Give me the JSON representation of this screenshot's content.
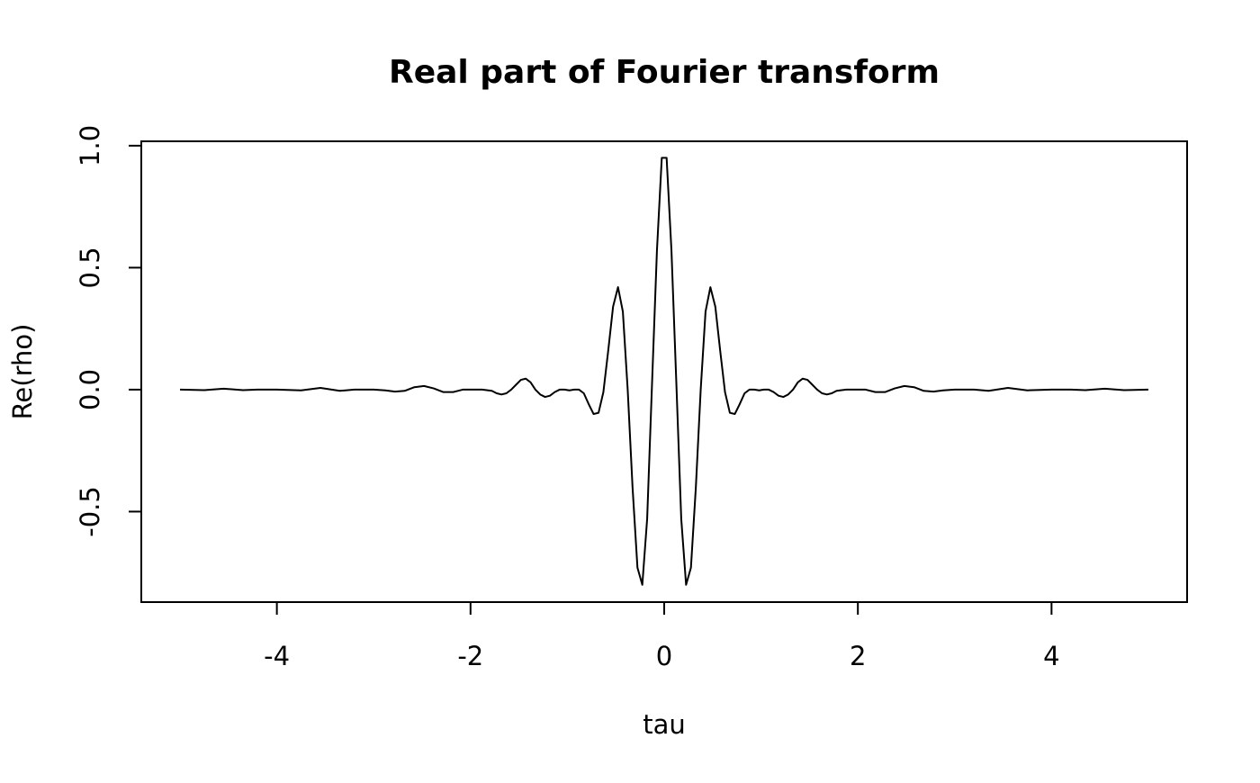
{
  "chart_data": {
    "type": "line",
    "title": "Real part of Fourier transform",
    "x_label": "tau",
    "y_label": "Re(rho)",
    "color": "#000000",
    "x": [
      -5.0,
      -4.75,
      -4.55,
      -4.35,
      -4.2,
      -4.0,
      -3.75,
      -3.55,
      -3.35,
      -3.2,
      -3.0,
      -2.88,
      -2.78,
      -2.68,
      -2.58,
      -2.48,
      -2.38,
      -2.28,
      -2.18,
      -2.08,
      -1.98,
      -1.88,
      -1.78,
      -1.73,
      -1.68,
      -1.63,
      -1.58,
      -1.53,
      -1.48,
      -1.43,
      -1.38,
      -1.33,
      -1.28,
      -1.23,
      -1.18,
      -1.13,
      -1.08,
      -1.03,
      -0.98,
      -0.93,
      -0.88,
      -0.83,
      -0.779,
      -0.729,
      -0.678,
      -0.628,
      -0.578,
      -0.528,
      -0.477,
      -0.427,
      -0.377,
      -0.327,
      -0.276,
      -0.226,
      -0.176,
      -0.126,
      -0.075,
      -0.025,
      0.025,
      0.075,
      0.126,
      0.176,
      0.226,
      0.276,
      0.327,
      0.377,
      0.427,
      0.477,
      0.528,
      0.578,
      0.628,
      0.678,
      0.729,
      0.779,
      0.83,
      0.88,
      0.93,
      0.98,
      1.03,
      1.08,
      1.13,
      1.18,
      1.23,
      1.28,
      1.33,
      1.38,
      1.43,
      1.48,
      1.53,
      1.58,
      1.63,
      1.68,
      1.73,
      1.78,
      1.88,
      1.98,
      2.08,
      2.18,
      2.28,
      2.38,
      2.48,
      2.58,
      2.68,
      2.78,
      2.88,
      3.0,
      3.2,
      3.35,
      3.55,
      3.75,
      4.0,
      4.2,
      4.35,
      4.55,
      4.75,
      5.0
    ],
    "values": [
      0.0,
      -0.002,
      0.004,
      -0.002,
      0.0,
      0.0,
      -0.003,
      0.007,
      -0.005,
      0.0,
      0.0,
      -0.003,
      -0.008,
      -0.005,
      0.01,
      0.015,
      0.005,
      -0.01,
      -0.01,
      0.0,
      0.0,
      0.0,
      -0.005,
      -0.015,
      -0.02,
      -0.015,
      0.0,
      0.02,
      0.04,
      0.045,
      0.03,
      0.0,
      -0.02,
      -0.03,
      -0.025,
      -0.01,
      0.0,
      0.0,
      -0.003,
      0.0,
      0.0,
      -0.015,
      -0.06,
      -0.1,
      -0.095,
      -0.01,
      0.16,
      0.34,
      0.42,
      0.32,
      0.0,
      -0.4,
      -0.73,
      -0.8,
      -0.53,
      0.02,
      0.57,
      0.95,
      0.95,
      0.57,
      0.02,
      -0.53,
      -0.8,
      -0.73,
      -0.4,
      0.0,
      0.32,
      0.42,
      0.34,
      0.16,
      -0.01,
      -0.095,
      -0.1,
      -0.06,
      -0.015,
      0.0,
      0.0,
      -0.003,
      0.0,
      0.0,
      -0.01,
      -0.025,
      -0.03,
      -0.02,
      0.0,
      0.03,
      0.045,
      0.04,
      0.02,
      0.0,
      -0.015,
      -0.02,
      -0.015,
      -0.005,
      0.0,
      0.0,
      0.0,
      -0.01,
      -0.01,
      0.005,
      0.015,
      0.01,
      -0.005,
      -0.008,
      -0.003,
      0.0,
      0.0,
      -0.005,
      0.007,
      -0.003,
      0.0,
      0.0,
      -0.002,
      0.004,
      -0.002,
      0.0
    ],
    "xlim": [
      -5.4,
      5.4
    ],
    "ylim": [
      -0.871,
      1.018
    ],
    "xticks": [
      -4,
      -2,
      0,
      2,
      4
    ],
    "yticks": [
      -0.5,
      {
        "value": 0,
        "label": "0.0"
      },
      0.5,
      {
        "value": 1,
        "label": "1.0"
      }
    ]
  }
}
